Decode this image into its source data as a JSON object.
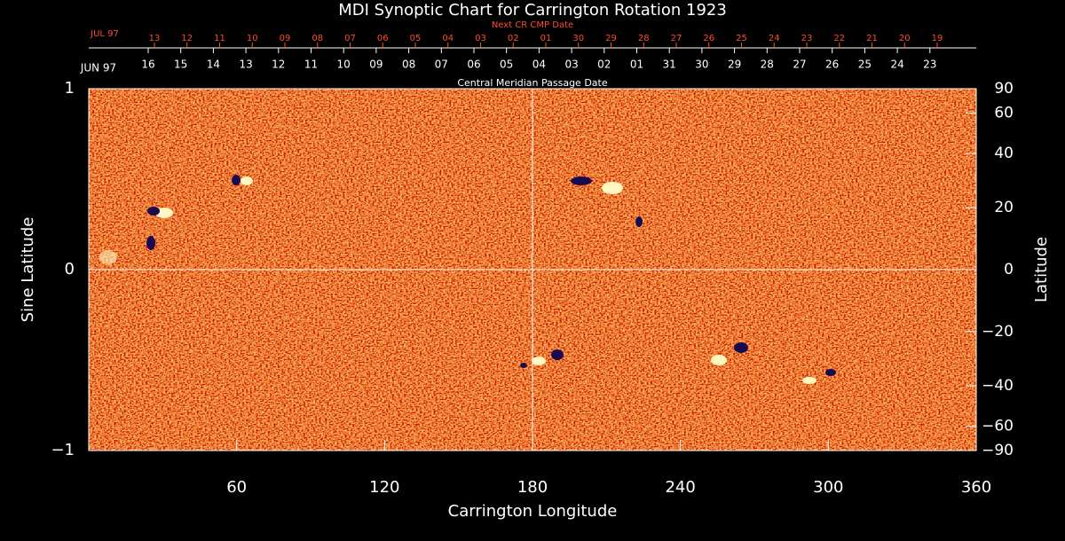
{
  "chart_data": {
    "type": "synoptic-map",
    "title": "MDI Synoptic Chart for Carrington Rotation 1923",
    "xlabel": "Carrington Longitude",
    "ylabel": "Sine Latitude",
    "y2label": "Latitude",
    "xlim": [
      0,
      360
    ],
    "xticks": [
      60,
      120,
      180,
      240,
      300,
      360
    ],
    "ylim": [
      -1,
      1
    ],
    "yticks": [
      {
        "value": -1,
        "label": "−1"
      },
      0,
      1
    ],
    "y2lim": [
      -90,
      90
    ],
    "y2scale": "sine",
    "y2ticks": [
      90,
      60,
      40,
      20,
      0,
      {
        "value": -20,
        "label": "−20"
      },
      {
        "value": -40,
        "label": "−40"
      },
      {
        "value": -60,
        "label": "−60"
      },
      {
        "value": -90,
        "label": "−90"
      }
    ],
    "grid": {
      "x": 180,
      "y": 0
    },
    "top_axis": {
      "label": "Central Meridian Passage Date",
      "month": "JUN 97",
      "dates": [
        "16",
        "15",
        "14",
        "13",
        "12",
        "11",
        "10",
        "09",
        "08",
        "07",
        "06",
        "05",
        "04",
        "03",
        "02",
        "01",
        "31",
        "30",
        "29",
        "28",
        "27",
        "26",
        "25",
        "24",
        "23"
      ]
    },
    "next_axis": {
      "label": "Next CR CMP Date",
      "month": "JUL 97",
      "dates": [
        "13",
        "12",
        "11",
        "10",
        "09",
        "08",
        "07",
        "06",
        "05",
        "04",
        "03",
        "02",
        "01",
        "30",
        "29",
        "28",
        "27",
        "26",
        "25",
        "24",
        "23",
        "22",
        "21",
        "20",
        "19"
      ]
    }
  }
}
